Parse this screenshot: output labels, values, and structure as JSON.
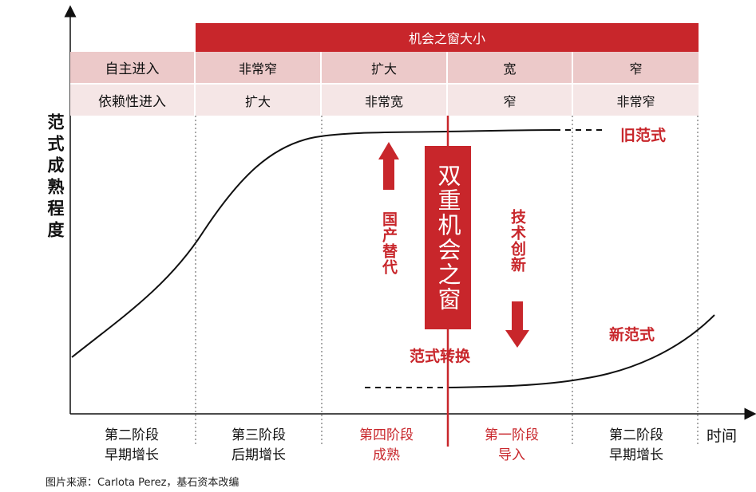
{
  "window_band": {
    "title": "机会之窗大小"
  },
  "table": {
    "rows": [
      {
        "header": "自主进入",
        "cells": [
          "非常窄",
          "扩大",
          "宽",
          "窄"
        ]
      },
      {
        "header": "依赖性进入",
        "cells": [
          "扩大",
          "非常宽",
          "窄",
          "非常窄"
        ]
      }
    ]
  },
  "y_axis_label": "范式成熟程度",
  "x_axis_label": "时间",
  "curves": {
    "old": "旧范式",
    "new": "新范式"
  },
  "annotations": {
    "substitution": "国产替代",
    "innovation": "技术创新",
    "shift": "范式转换",
    "dual_window": "双重机会之窗"
  },
  "stages": [
    {
      "line1": "第二阶段",
      "line2": "早期增长",
      "highlight": false
    },
    {
      "line1": "第三阶段",
      "line2": "后期增长",
      "highlight": false
    },
    {
      "line1": "第四阶段",
      "line2": "成熟",
      "highlight": true
    },
    {
      "line1": "第一阶段",
      "line2": "导入",
      "highlight": true
    },
    {
      "line1": "第二阶段",
      "line2": "早期增长",
      "highlight": false
    }
  ],
  "source": "图片来源：Carlota Perez，基石资本改编",
  "colors": {
    "accent": "#c8262b",
    "row1": "#ecc9c9",
    "row2": "#f5e6e6"
  }
}
